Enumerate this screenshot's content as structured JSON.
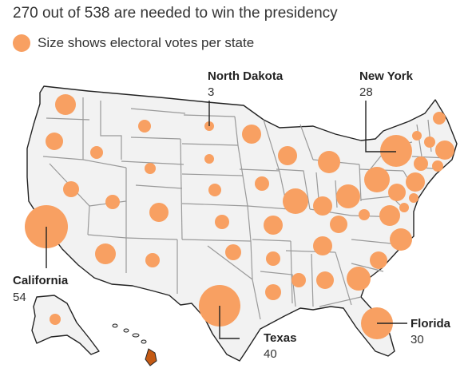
{
  "title": "270 out of 538 are needed to win the presidency",
  "legend": {
    "text": "Size shows electoral votes per state",
    "icon": "circle-icon"
  },
  "colors": {
    "bubble": "#f8a062",
    "land": "#f2f2f2",
    "state_border": "#ffffff",
    "outline": "#222222",
    "hawaii": "#c45a14",
    "leader": "#222222"
  },
  "callouts": {
    "north_dakota": {
      "name": "North Dakota",
      "votes": "3"
    },
    "new_york": {
      "name": "New York",
      "votes": "28"
    },
    "california": {
      "name": "California",
      "votes": "54"
    },
    "texas": {
      "name": "Texas",
      "votes": "40"
    },
    "florida": {
      "name": "Florida",
      "votes": "30"
    }
  },
  "electoral_votes": {
    "AK": 3,
    "AL": 9,
    "AR": 6,
    "AZ": 11,
    "CA": 54,
    "CO": 10,
    "CT": 7,
    "DC": 3,
    "DE": 3,
    "FL": 30,
    "GA": 16,
    "HI": 4,
    "IA": 6,
    "ID": 4,
    "IL": 19,
    "IN": 11,
    "KS": 6,
    "KY": 8,
    "LA": 8,
    "MA": 11,
    "MD": 10,
    "ME": 4,
    "MI": 15,
    "MN": 10,
    "MO": 10,
    "MS": 6,
    "MT": 4,
    "NC": 16,
    "ND": 3,
    "NE": 5,
    "NH": 4,
    "NJ": 14,
    "NM": 5,
    "NV": 6,
    "NY": 28,
    "OH": 17,
    "OK": 7,
    "OR": 8,
    "PA": 19,
    "RI": 4,
    "SC": 9,
    "SD": 3,
    "TN": 11,
    "TX": 40,
    "UT": 6,
    "VA": 13,
    "VT": 3,
    "WA": 12,
    "WI": 10,
    "WV": 4,
    "WY": 3
  }
}
